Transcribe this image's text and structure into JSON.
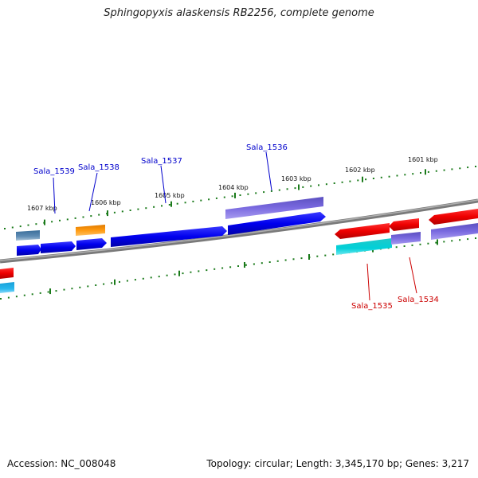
{
  "title": "Sphingopyxis alaskensis RB2256, complete genome",
  "footer": {
    "accession": "Accession: NC_008048",
    "topology": "Topology: circular; Length: 3,345,170 bp; Genes: 3,217"
  },
  "scale_labels": [
    "1607 kbp",
    "1606 kbp",
    "1605 kbp",
    "1604 kbp",
    "1603 kbp",
    "1602 kbp",
    "1601 kbp"
  ],
  "gene_labels": {
    "top": [
      "Sala_1539",
      "Sala_1538",
      "Sala_1537",
      "Sala_1536"
    ],
    "bottom": [
      "Sala_1535",
      "Sala_1534"
    ]
  },
  "colors": {
    "forward_label": "#0000cc",
    "reverse_label": "#cc0000",
    "tick": "#1a7a1a",
    "backbone": "#888888"
  }
}
